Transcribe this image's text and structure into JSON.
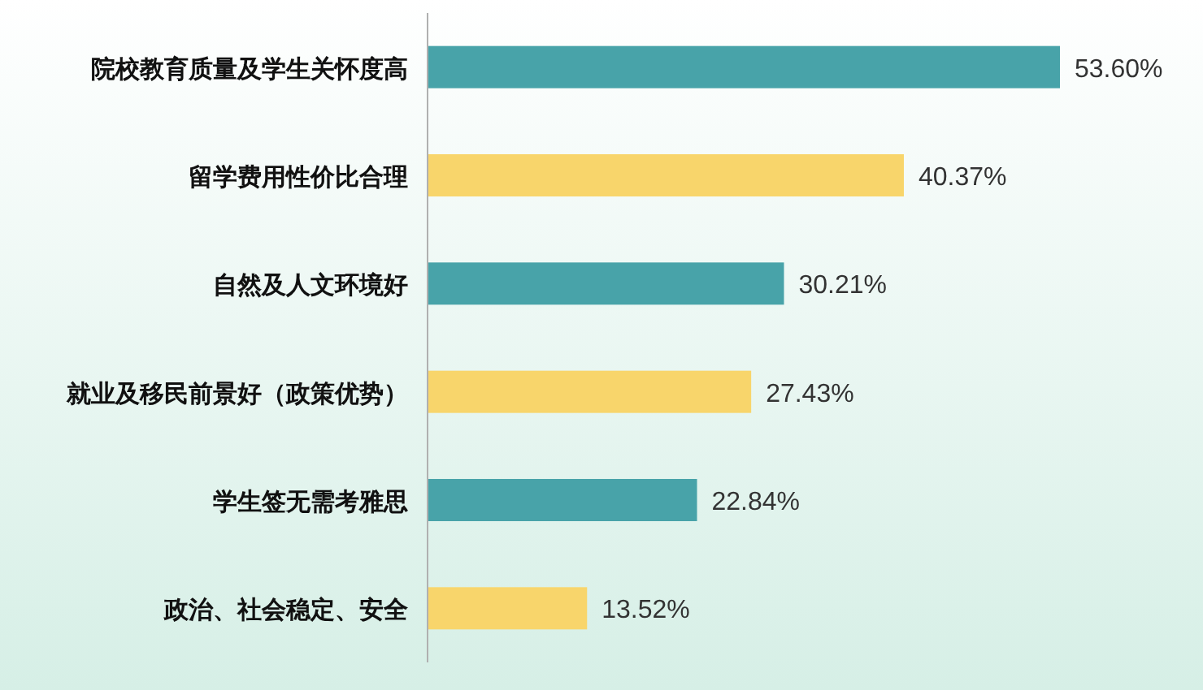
{
  "chart_data": {
    "type": "bar",
    "orientation": "horizontal",
    "categories": [
      "院校教育质量及学生关怀度高",
      "留学费用性价比合理",
      "自然及人文环境好",
      "就业及移民前景好（政策优势）",
      "学生签无需考雅思",
      "政治、社会稳定、安全"
    ],
    "values": [
      53.6,
      40.37,
      30.21,
      27.43,
      22.84,
      13.52
    ],
    "value_labels": [
      "53.60%",
      "40.37%",
      "30.21%",
      "27.43%",
      "22.84%",
      "13.52%"
    ],
    "colors": [
      "#48a3a9",
      "#f8d56b",
      "#48a3a9",
      "#f8d56b",
      "#48a3a9",
      "#f8d56b"
    ]
  }
}
